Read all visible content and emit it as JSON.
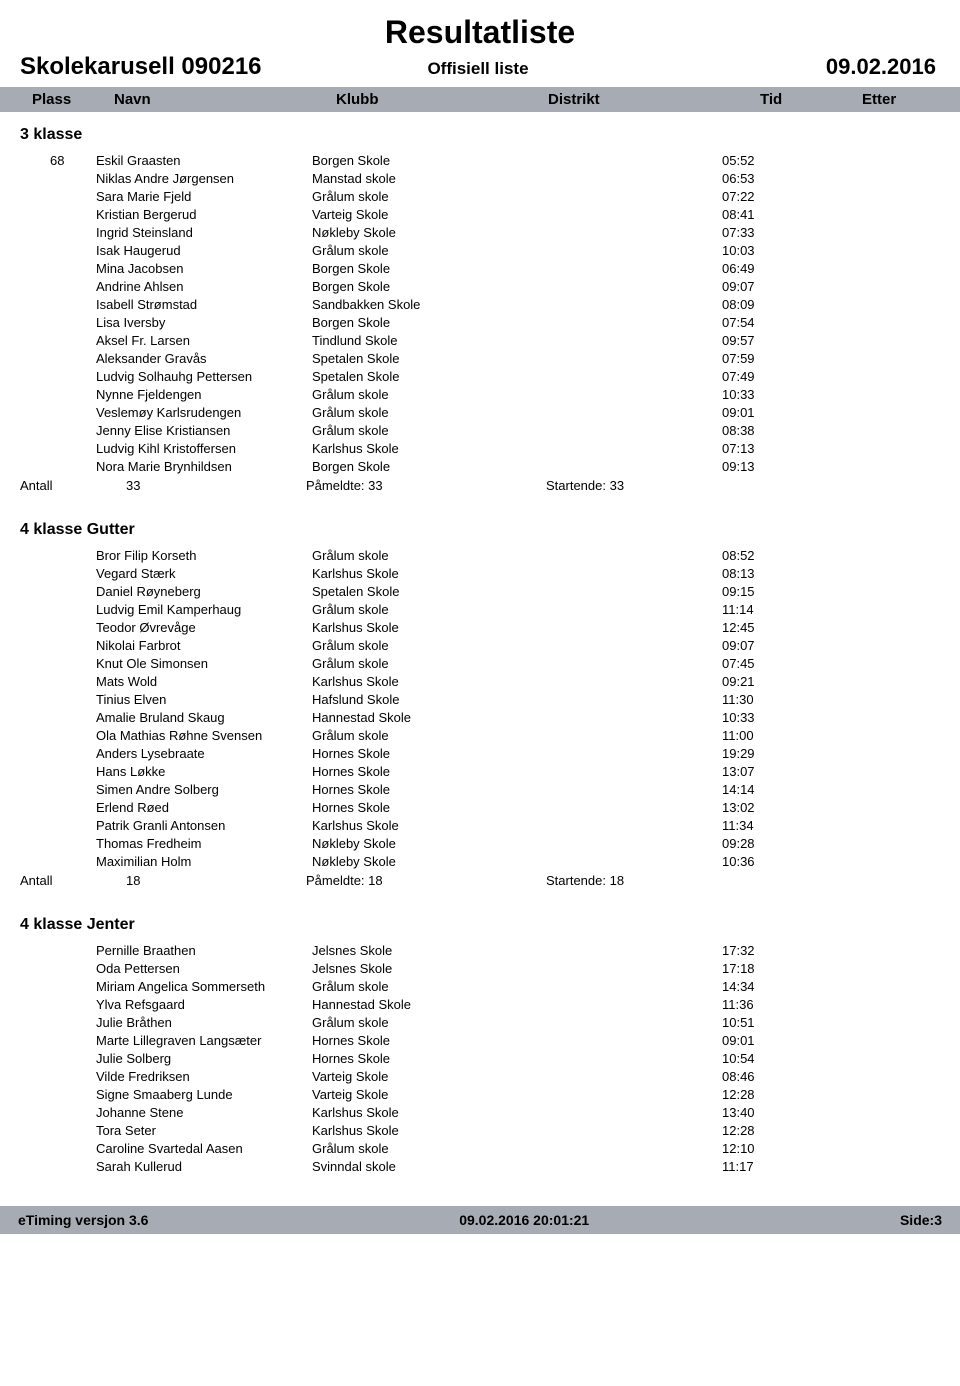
{
  "header": {
    "main_title": "Resultatliste",
    "event_name": "Skolekarusell 090216",
    "official": "Offisiell liste",
    "event_date": "09.02.2016"
  },
  "columns": {
    "plass": "Plass",
    "navn": "Navn",
    "klubb": "Klubb",
    "distrikt": "Distrikt",
    "tid": "Tid",
    "etter": "Etter"
  },
  "groups": [
    {
      "title": "3 klasse",
      "rows": [
        {
          "plass": "68",
          "navn": "Eskil Graasten",
          "klubb": "Borgen Skole",
          "tid": "05:52"
        },
        {
          "plass": "",
          "navn": "Niklas Andre Jørgensen",
          "klubb": "Manstad skole",
          "tid": "06:53"
        },
        {
          "plass": "",
          "navn": "Sara Marie Fjeld",
          "klubb": "Grålum skole",
          "tid": "07:22"
        },
        {
          "plass": "",
          "navn": "Kristian Bergerud",
          "klubb": "Varteig Skole",
          "tid": "08:41"
        },
        {
          "plass": "",
          "navn": "Ingrid Steinsland",
          "klubb": "Nøkleby Skole",
          "tid": "07:33"
        },
        {
          "plass": "",
          "navn": "Isak Haugerud",
          "klubb": "Grålum skole",
          "tid": "10:03"
        },
        {
          "plass": "",
          "navn": "Mina Jacobsen",
          "klubb": "Borgen Skole",
          "tid": "06:49"
        },
        {
          "plass": "",
          "navn": "Andrine Ahlsen",
          "klubb": "Borgen Skole",
          "tid": "09:07"
        },
        {
          "plass": "",
          "navn": "Isabell Strømstad",
          "klubb": "Sandbakken Skole",
          "tid": "08:09"
        },
        {
          "plass": "",
          "navn": "Lisa Iversby",
          "klubb": "Borgen Skole",
          "tid": "07:54"
        },
        {
          "plass": "",
          "navn": "Aksel Fr. Larsen",
          "klubb": "Tindlund Skole",
          "tid": "09:57"
        },
        {
          "plass": "",
          "navn": "Aleksander Gravås",
          "klubb": "Spetalen Skole",
          "tid": "07:59"
        },
        {
          "plass": "",
          "navn": "Ludvig Solhauhg Pettersen",
          "klubb": "Spetalen Skole",
          "tid": "07:49"
        },
        {
          "plass": "",
          "navn": "Nynne Fjeldengen",
          "klubb": "Grålum skole",
          "tid": "10:33"
        },
        {
          "plass": "",
          "navn": "Veslemøy Karlsrudengen",
          "klubb": "Grålum skole",
          "tid": "09:01"
        },
        {
          "plass": "",
          "navn": "Jenny Elise Kristiansen",
          "klubb": "Grålum skole",
          "tid": "08:38"
        },
        {
          "plass": "",
          "navn": "Ludvig Kihl Kristoffersen",
          "klubb": "Karlshus Skole",
          "tid": "07:13"
        },
        {
          "plass": "",
          "navn": "Nora Marie Brynhildsen",
          "klubb": "Borgen Skole",
          "tid": "09:13"
        }
      ],
      "totals": {
        "label": "Antall",
        "count": "33",
        "pameldte": "Påmeldte: 33",
        "startende": "Startende: 33"
      }
    },
    {
      "title": "4 klasse Gutter",
      "rows": [
        {
          "plass": "",
          "navn": "Bror Filip Korseth",
          "klubb": "Grålum skole",
          "tid": "08:52"
        },
        {
          "plass": "",
          "navn": "Vegard Stærk",
          "klubb": "Karlshus Skole",
          "tid": "08:13"
        },
        {
          "plass": "",
          "navn": "Daniel Røyneberg",
          "klubb": "Spetalen Skole",
          "tid": "09:15"
        },
        {
          "plass": "",
          "navn": "Ludvig Emil Kamperhaug",
          "klubb": "Grålum skole",
          "tid": "11:14"
        },
        {
          "plass": "",
          "navn": "Teodor Øvrevåge",
          "klubb": "Karlshus Skole",
          "tid": "12:45"
        },
        {
          "plass": "",
          "navn": "Nikolai Farbrot",
          "klubb": "Grålum skole",
          "tid": "09:07"
        },
        {
          "plass": "",
          "navn": "Knut Ole Simonsen",
          "klubb": "Grålum skole",
          "tid": "07:45"
        },
        {
          "plass": "",
          "navn": "Mats Wold",
          "klubb": "Karlshus Skole",
          "tid": "09:21"
        },
        {
          "plass": "",
          "navn": "Tinius Elven",
          "klubb": "Hafslund Skole",
          "tid": "11:30"
        },
        {
          "plass": "",
          "navn": "Amalie Bruland Skaug",
          "klubb": "Hannestad Skole",
          "tid": "10:33"
        },
        {
          "plass": "",
          "navn": "Ola Mathias Røhne Svensen",
          "klubb": "Grålum skole",
          "tid": "11:00"
        },
        {
          "plass": "",
          "navn": "Anders Lysebraate",
          "klubb": "Hornes Skole",
          "tid": "19:29"
        },
        {
          "plass": "",
          "navn": "Hans Løkke",
          "klubb": "Hornes Skole",
          "tid": "13:07"
        },
        {
          "plass": "",
          "navn": "Simen Andre Solberg",
          "klubb": "Hornes Skole",
          "tid": "14:14"
        },
        {
          "plass": "",
          "navn": "Erlend Røed",
          "klubb": "Hornes Skole",
          "tid": "13:02"
        },
        {
          "plass": "",
          "navn": "Patrik Granli Antonsen",
          "klubb": "Karlshus Skole",
          "tid": "11:34"
        },
        {
          "plass": "",
          "navn": "Thomas Fredheim",
          "klubb": "Nøkleby Skole",
          "tid": "09:28"
        },
        {
          "plass": "",
          "navn": "Maximilian Holm",
          "klubb": "Nøkleby Skole",
          "tid": "10:36"
        }
      ],
      "totals": {
        "label": "Antall",
        "count": "18",
        "pameldte": "Påmeldte: 18",
        "startende": "Startende: 18"
      }
    },
    {
      "title": "4 klasse Jenter",
      "rows": [
        {
          "plass": "",
          "navn": "Pernille Braathen",
          "klubb": "Jelsnes Skole",
          "tid": "17:32"
        },
        {
          "plass": "",
          "navn": "Oda Pettersen",
          "klubb": "Jelsnes Skole",
          "tid": "17:18"
        },
        {
          "plass": "",
          "navn": "Miriam Angelica Sommerseth",
          "klubb": "Grålum skole",
          "tid": "14:34"
        },
        {
          "plass": "",
          "navn": "Ylva Refsgaard",
          "klubb": "Hannestad Skole",
          "tid": "11:36"
        },
        {
          "plass": "",
          "navn": "Julie Bråthen",
          "klubb": "Grålum skole",
          "tid": "10:51"
        },
        {
          "plass": "",
          "navn": "Marte Lillegraven Langsæter",
          "klubb": "Hornes Skole",
          "tid": "09:01"
        },
        {
          "plass": "",
          "navn": "Julie Solberg",
          "klubb": "Hornes Skole",
          "tid": "10:54"
        },
        {
          "plass": "",
          "navn": "Vilde Fredriksen",
          "klubb": "Varteig Skole",
          "tid": "08:46"
        },
        {
          "plass": "",
          "navn": "Signe Smaaberg Lunde",
          "klubb": "Varteig Skole",
          "tid": "12:28"
        },
        {
          "plass": "",
          "navn": "Johanne Stene",
          "klubb": "Karlshus Skole",
          "tid": "13:40"
        },
        {
          "plass": "",
          "navn": "Tora Seter",
          "klubb": "Karlshus Skole",
          "tid": "12:28"
        },
        {
          "plass": "",
          "navn": "Caroline Svartedal Aasen",
          "klubb": "Grålum skole",
          "tid": "12:10"
        },
        {
          "plass": "",
          "navn": "Sarah Kullerud",
          "klubb": "Svinndal skole",
          "tid": "11:17"
        }
      ],
      "totals": null
    }
  ],
  "footer": {
    "left": "eTiming versjon 3.6",
    "center": "09.02.2016 20:01:21",
    "right": "Side:3"
  }
}
